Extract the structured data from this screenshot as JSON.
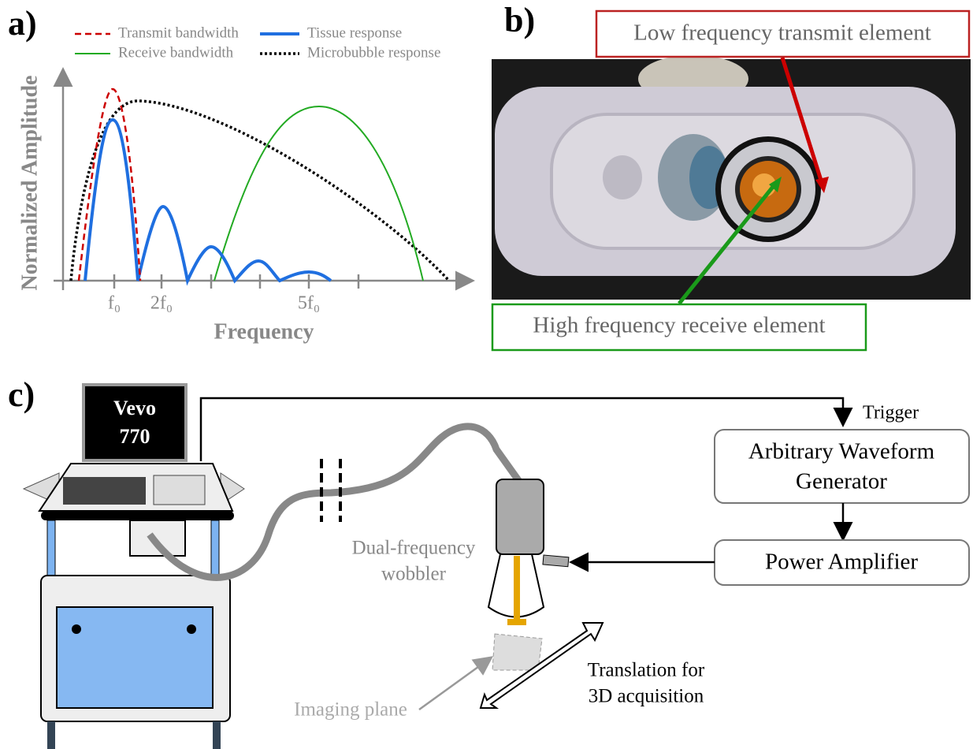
{
  "panels": [
    {
      "label": "a)",
      "legend": [
        "Transmit bandwidth",
        "Tissue response",
        "Receive bandwidth",
        "Microbubble response"
      ],
      "y_axis_label": "Normalized Amplitude",
      "x_axis_label": "Frequency",
      "x_tick_labels": [
        "f₀",
        "2f₀",
        "5f₀"
      ]
    },
    {
      "label": "b)",
      "callouts": [
        "Low frequency transmit element",
        "High frequency receive element"
      ]
    },
    {
      "label": "c)",
      "monitor": [
        "Vevo",
        "770"
      ],
      "trigger": "Trigger",
      "generator": [
        "Arbitrary Waveform",
        "Generator"
      ],
      "amplifier": "Power Amplifier",
      "wobbler": [
        "Dual-frequency",
        "wobbler"
      ],
      "imaging_plane": "Imaging plane",
      "translation": [
        "Translation for",
        "3D acquisition"
      ]
    }
  ]
}
